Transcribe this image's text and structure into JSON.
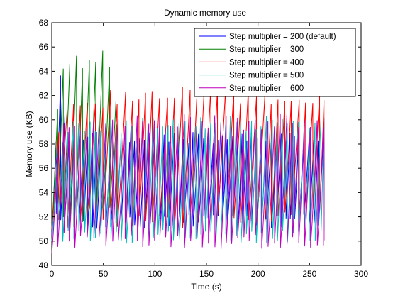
{
  "chart_data": {
    "type": "line",
    "title": "Dynamic memory use",
    "xlabel": "Time (s)",
    "ylabel": "Memory use (KB)",
    "xlim": [
      0,
      300
    ],
    "ylim": [
      48,
      68
    ],
    "xticks": [
      0,
      50,
      100,
      150,
      200,
      250,
      300
    ],
    "yticks": [
      48,
      50,
      52,
      54,
      56,
      58,
      60,
      62,
      64,
      66,
      68
    ],
    "grid": false,
    "legend_position": "top-right",
    "series": [
      {
        "name": "Step multiplier = 200 (default)",
        "color": "#0000ff",
        "period": 4.5,
        "t_end": 264,
        "envelope": [
          [
            0,
            50.5,
            53
          ],
          [
            4,
            52,
            58
          ],
          [
            9,
            51.5,
            64.3
          ],
          [
            15,
            51,
            59
          ],
          [
            25,
            51,
            59
          ],
          [
            264,
            51,
            59
          ]
        ]
      },
      {
        "name": "Step multiplier = 300",
        "color": "#008000",
        "period": 6,
        "t_end": 63,
        "envelope": [
          [
            0,
            51,
            53
          ],
          [
            4,
            52,
            61
          ],
          [
            10,
            52,
            64.6
          ],
          [
            18,
            51,
            65.6
          ],
          [
            30,
            51.5,
            65.8
          ],
          [
            42,
            52,
            66.2
          ],
          [
            52,
            52,
            66
          ],
          [
            60,
            52,
            66
          ],
          [
            63,
            52,
            60
          ]
        ]
      },
      {
        "name": "Step multiplier = 400",
        "color": "#ff0000",
        "period": 7,
        "t_end": 264,
        "envelope": [
          [
            0,
            51,
            54
          ],
          [
            8,
            51,
            61
          ],
          [
            20,
            51,
            62
          ],
          [
            60,
            51,
            62.5
          ],
          [
            150,
            51,
            62.8
          ],
          [
            264,
            51.5,
            62.5
          ]
        ]
      },
      {
        "name": "Step multiplier = 500",
        "color": "#00bfbf",
        "period": 5,
        "t_end": 264,
        "envelope": [
          [
            0,
            50,
            54
          ],
          [
            8,
            50,
            59
          ],
          [
            20,
            49.8,
            60
          ],
          [
            100,
            49.8,
            60.2
          ],
          [
            264,
            49.8,
            60.5
          ]
        ]
      },
      {
        "name": "Step multiplier = 600",
        "color": "#bf00bf",
        "period": 5.7,
        "t_end": 264,
        "envelope": [
          [
            0,
            49,
            52
          ],
          [
            3,
            49.5,
            56
          ],
          [
            10,
            49.5,
            60
          ],
          [
            40,
            49.4,
            60.5
          ],
          [
            264,
            49.3,
            60.5
          ]
        ]
      }
    ]
  }
}
